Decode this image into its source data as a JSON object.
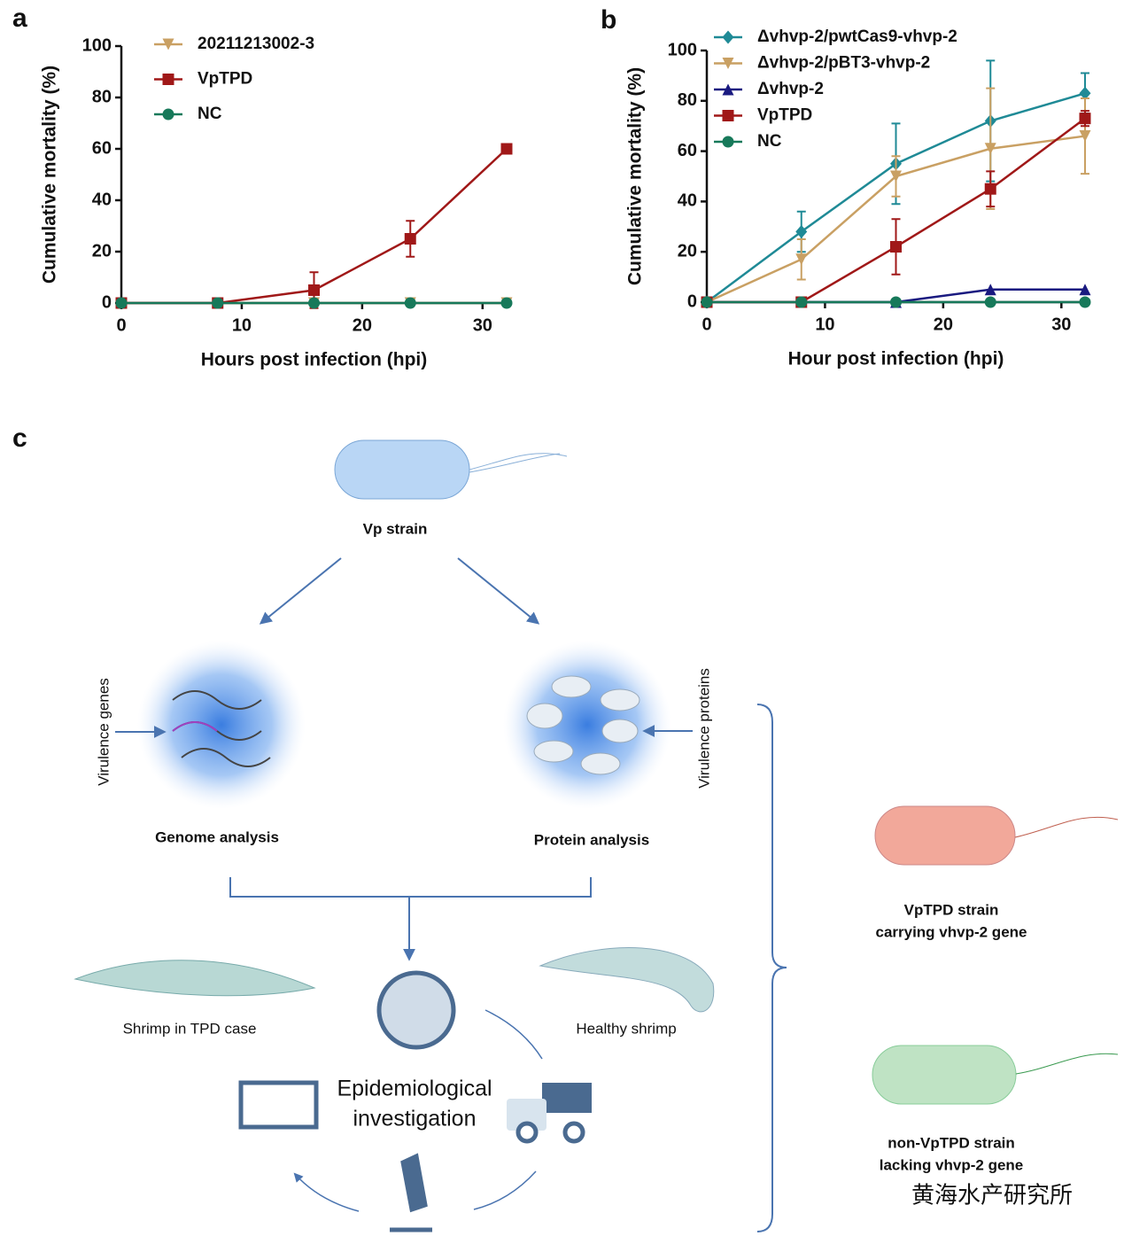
{
  "chart_data": [
    {
      "type": "line",
      "panel": "a",
      "x_label": "Hours post infection (hpi)",
      "y_label": "Cumulative mortality (%)",
      "x": [
        0,
        8,
        16,
        24,
        32
      ],
      "xlim": [
        0,
        32
      ],
      "xticks": [
        0,
        10,
        20,
        30
      ],
      "ylim": [
        0,
        100
      ],
      "yticks": [
        0,
        20,
        40,
        60,
        80,
        100
      ],
      "series": [
        {
          "name": "20211213002-3",
          "color": "#c9a063",
          "marker": "triangle-down",
          "values": [
            0,
            0,
            0,
            0,
            0
          ]
        },
        {
          "name": "VpTPD",
          "color": "#a01818",
          "marker": "square",
          "values": [
            0,
            0,
            5,
            25,
            60
          ],
          "errors": [
            0,
            0,
            7,
            7,
            0
          ]
        },
        {
          "name": "NC",
          "color": "#17795a",
          "marker": "circle",
          "values": [
            0,
            0,
            0,
            0,
            0
          ]
        }
      ]
    },
    {
      "type": "line",
      "panel": "b",
      "x_label": "Hour post infection (hpi)",
      "y_label": "Cumulative mortality (%)",
      "x": [
        0,
        8,
        16,
        24,
        32
      ],
      "xlim": [
        0,
        32
      ],
      "xticks": [
        0,
        10,
        20,
        30
      ],
      "ylim": [
        0,
        100
      ],
      "yticks": [
        0,
        20,
        40,
        60,
        80,
        100
      ],
      "series": [
        {
          "name": "Δvhvp-2/pwtCas9-vhvp-2",
          "color": "#1f8a96",
          "marker": "diamond",
          "values": [
            0,
            28,
            55,
            72,
            83
          ],
          "errors": [
            0,
            8,
            16,
            24,
            8
          ]
        },
        {
          "name": "Δvhvp-2/pBT3-vhvp-2",
          "color": "#c9a063",
          "marker": "triangle-down",
          "values": [
            0,
            17,
            50,
            61,
            66
          ],
          "errors": [
            0,
            8,
            8,
            24,
            15
          ]
        },
        {
          "name": "Δvhvp-2",
          "color": "#1a1a80",
          "marker": "triangle-up",
          "values": [
            0,
            0,
            0,
            5,
            5
          ]
        },
        {
          "name": "VpTPD",
          "color": "#a01818",
          "marker": "square",
          "values": [
            0,
            0,
            22,
            45,
            73
          ],
          "errors": [
            0,
            0,
            11,
            7,
            3
          ]
        },
        {
          "name": "NC",
          "color": "#17795a",
          "marker": "circle",
          "values": [
            0,
            0,
            0,
            0,
            0
          ]
        }
      ]
    }
  ],
  "diagram": {
    "panel": "c",
    "strain": "Vp strain",
    "genes_arrow": "Virulence genes",
    "proteins_arrow": "Virulence proteins",
    "genome": "Genome analysis",
    "protein": "Protein analysis",
    "shrimp_tpd": "Shrimp in TPD case",
    "shrimp_healthy": "Healthy shrimp",
    "epi_line1": "Epidemiological",
    "epi_line2": "investigation",
    "tpd_strain_line1": "VpTPD strain",
    "tpd_strain_line2": "carrying vhvp-2 gene",
    "non_strain_line1": "non-VpTPD strain",
    "non_strain_line2": "lacking vhvp-2 gene",
    "watermark": "黄海水产研究所"
  }
}
